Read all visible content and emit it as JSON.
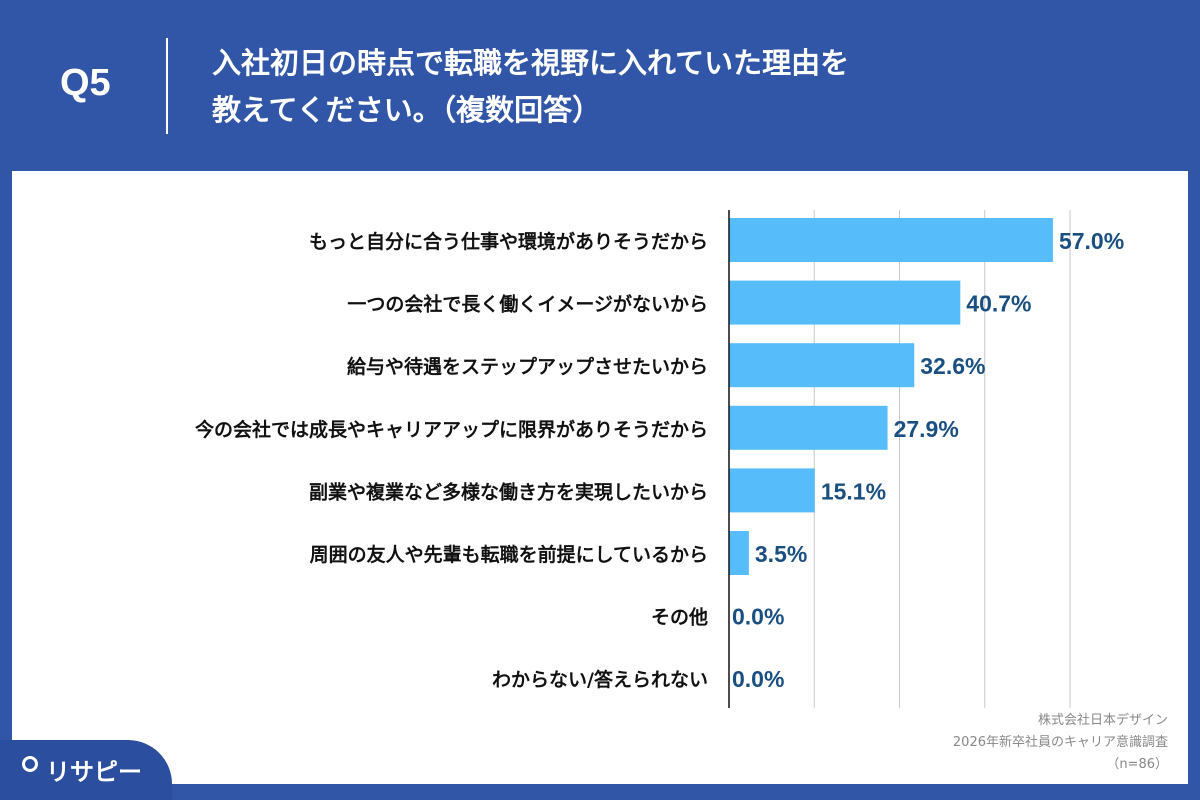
{
  "header": {
    "question": "Q5",
    "title_line1": "入社初日の時点で転職を視野に入れていた理由を",
    "title_line2": "教えてください。（複数回答）"
  },
  "source": {
    "company": "株式会社日本デザイン",
    "survey": "2026年新卒社員のキャリア意識調査",
    "n": "（n=86）"
  },
  "logo": {
    "text": "リサピー"
  },
  "colors": {
    "background": "#3256a7",
    "bar": "#56bdfa",
    "value_label": "#1a4f82"
  },
  "chart_data": {
    "type": "bar",
    "orientation": "horizontal",
    "categories": [
      "もっと自分に合う仕事や環境がありそうだから",
      "一つの会社で長く働くイメージがないから",
      "給与や待遇をステップアップさせたいから",
      "今の会社では成長やキャリアアップに限界がありそうだから",
      "副業や複業など多様な働き方を実現したいから",
      "周囲の友人や先輩も転職を前提にしているから",
      "その他",
      "わからない/答えられない"
    ],
    "values": [
      57.0,
      40.7,
      32.6,
      27.9,
      15.1,
      3.5,
      0.0,
      0.0
    ],
    "labels": [
      "57.0%",
      "40.7%",
      "32.6%",
      "27.9%",
      "15.1%",
      "3.5%",
      "0.0%",
      "0.0%"
    ],
    "xlim": [
      0,
      60
    ],
    "grid_step": 15,
    "grid": true
  }
}
